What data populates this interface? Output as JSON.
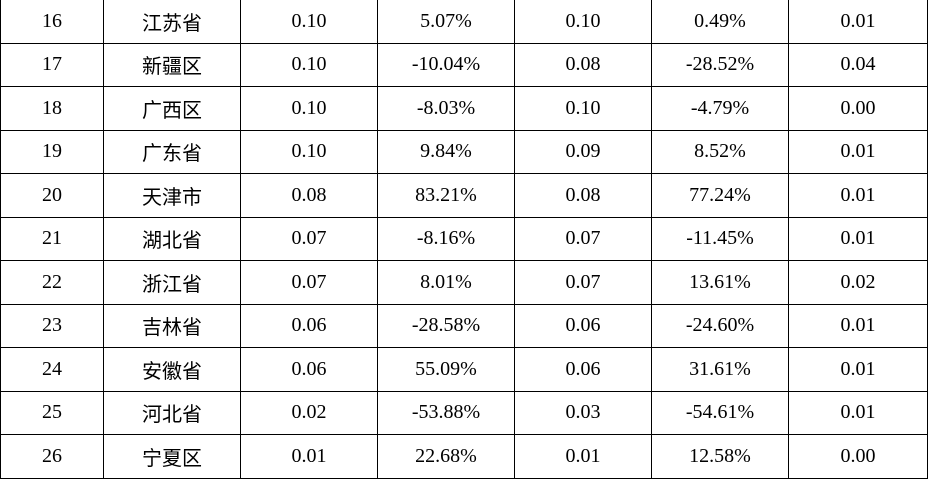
{
  "table": {
    "rows": [
      [
        "16",
        "江苏省",
        "0.10",
        "5.07%",
        "0.10",
        "0.49%",
        "0.01"
      ],
      [
        "17",
        "新疆区",
        "0.10",
        "-10.04%",
        "0.08",
        "-28.52%",
        "0.04"
      ],
      [
        "18",
        "广西区",
        "0.10",
        "-8.03%",
        "0.10",
        "-4.79%",
        "0.00"
      ],
      [
        "19",
        "广东省",
        "0.10",
        "9.84%",
        "0.09",
        "8.52%",
        "0.01"
      ],
      [
        "20",
        "天津市",
        "0.08",
        "83.21%",
        "0.08",
        "77.24%",
        "0.01"
      ],
      [
        "21",
        "湖北省",
        "0.07",
        "-8.16%",
        "0.07",
        "-11.45%",
        "0.01"
      ],
      [
        "22",
        "浙江省",
        "0.07",
        "8.01%",
        "0.07",
        "13.61%",
        "0.02"
      ],
      [
        "23",
        "吉林省",
        "0.06",
        "-28.58%",
        "0.06",
        "-24.60%",
        "0.01"
      ],
      [
        "24",
        "安徽省",
        "0.06",
        "55.09%",
        "0.06",
        "31.61%",
        "0.01"
      ],
      [
        "25",
        "河北省",
        "0.02",
        "-53.88%",
        "0.03",
        "-54.61%",
        "0.01"
      ],
      [
        "26",
        "宁夏区",
        "0.01",
        "22.68%",
        "0.01",
        "12.58%",
        "0.00"
      ]
    ]
  }
}
